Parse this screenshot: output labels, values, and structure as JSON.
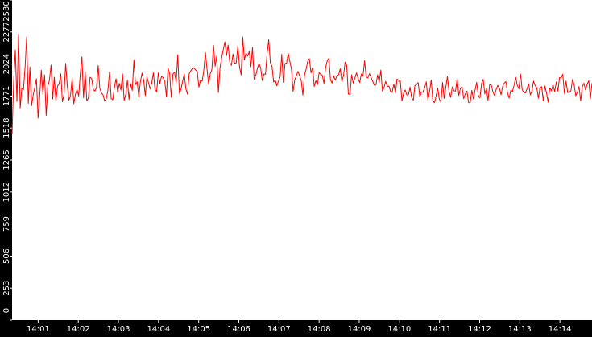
{
  "chart_data": {
    "type": "line",
    "title": "",
    "xlabel": "",
    "ylabel": "",
    "ylim": [
      0,
      2530
    ],
    "y_ticks": [
      "0",
      "253",
      "506",
      "759",
      "1012",
      "1265",
      "1518",
      "1771",
      "2024",
      "2277",
      "2530"
    ],
    "x_ticks": [
      "14:01",
      "14:02",
      "14:03",
      "14:04",
      "14:05",
      "14:06",
      "14:07",
      "14:08",
      "14:09",
      "14:10",
      "14:11",
      "14:12",
      "14:13",
      "14:14"
    ],
    "x_range": [
      "14:00:21",
      "14:14:48"
    ],
    "grid": false,
    "colors": {
      "background": "#000000",
      "plot_area": "#ffffff",
      "series": "#ff0000",
      "text": "#ffffff"
    },
    "series": [
      {
        "values": [
          1471,
          1890,
          2135,
          1728,
          2260,
          1676,
          1834,
          1818,
          1997,
          2238,
          1713,
          2001,
          1694,
          1778,
          1837,
          1908,
          1596,
          1770,
          1975,
          1784,
          1938,
          1617,
          1848,
          1896,
          2016,
          1747,
          1920,
          1728,
          1850,
          1870,
          1946,
          1725,
          1784,
          2029,
          1852,
          1738,
          1779,
          1915,
          1710,
          1784,
          1823,
          1771,
          1946,
          2080,
          1757,
          1966,
          1734,
          1754,
          1920,
          1910,
          1822,
          1810,
          1838,
          2012,
          1833,
          1794,
          1781,
          1731,
          1750,
          1817,
          1962,
          1752,
          1741,
          1841,
          1908,
          1800,
          1871,
          1816,
          1946,
          1736,
          1784,
          1896,
          1743,
          1869,
          1815,
          2056,
          1862,
          1884,
          1764,
          1884,
          1952,
          1896,
          1775,
          1922,
          1875,
          1827,
          1875,
          1955,
          1821,
          1805,
          1954,
          1871,
          1927,
          1915,
          1890,
          1768,
          1992,
          1949,
          1762,
          1943,
          1961,
          1880,
          2096,
          1791,
          1825,
          1888,
          1946,
          1826,
          1785,
          1946,
          1970,
          1989,
          1993,
          1977,
          1963,
          1841,
          1896,
          1888,
          1970,
          2115,
          1985,
          1863,
          1947,
          1980,
          2171,
          2005,
          2086,
          1798,
          1994,
          2073,
          2136,
          2199,
          2089,
          2174,
          2039,
          2013,
          2103,
          2028,
          2034,
          2170,
          2003,
          1937,
          2237,
          2056,
          2111,
          2086,
          2123,
          2003,
          2155,
          1904,
          1933,
          1989,
          2029,
          1994,
          1893,
          1945,
          1943,
          2109,
          2215,
          2033,
          2008,
          1882,
          1896,
          1851,
          1890,
          1920,
          2100,
          1878,
          2027,
          2031,
          2108,
          2045,
          1981,
          1807,
          1899,
          1933,
          1966,
          1931,
          1893,
          1778,
          1936,
          1983,
          2046,
          2066,
          1954,
          1996,
          1847,
          1892,
          1860,
          1955,
          1943,
          1934,
          1870,
          1993,
          2050,
          2070,
          1899,
          1873,
          1929,
          1896,
          1935,
          1938,
          1987,
          1887,
          1930,
          2039,
          2012,
          1787,
          1783,
          1938,
          1873,
          1912,
          1954,
          1909,
          1878,
          1945,
          1930,
          2050,
          1922,
          1915,
          1948,
          1917,
          1888,
          1857,
          1858,
          1938,
          1880,
          1976,
          1809,
          1840,
          1887,
          1845,
          1850,
          1806,
          1802,
          1865,
          1796,
          1906,
          1893,
          1889,
          1732,
          1792,
          1819,
          1779,
          1781,
          1841,
          1756,
          1739,
          1855,
          1861,
          1877,
          1764,
          1801,
          1805,
          1838,
          1883,
          1739,
          1807,
          1898,
          1733,
          1718,
          1771,
          1835,
          1747,
          1722,
          1878,
          1752,
          1838,
          1926,
          1805,
          1761,
          1843,
          1812,
          1810,
          1910,
          1775,
          1832,
          1843,
          1750,
          1788,
          1810,
          1719,
          1718,
          1816,
          1748,
          1817,
          1879,
          1775,
          1756,
          1869,
          1903,
          1787,
          1833,
          1735,
          1862,
          1857,
          1803,
          1776,
          1823,
          1856,
          1832,
          1781,
          1848,
          1874,
          1885,
          1793,
          1754,
          1817,
          1806,
          1854,
          1919,
          1855,
          1828,
          1946,
          1822,
          1799,
          1795,
          1827,
          1868,
          1780,
          1808,
          1889,
          1852,
          1836,
          1753,
          1838,
          1845,
          1734,
          1850,
          1794,
          1722,
          1835,
          1813,
          1860,
          1805,
          1882,
          1810,
          1917,
          1914,
          1943,
          1791,
          1889,
          1799,
          1802,
          1811,
          1902,
          1859,
          1773,
          1800,
          1846,
          1733,
          1842,
          1872,
          1819,
          1865,
          1892,
          1751,
          1873
        ]
      }
    ]
  }
}
